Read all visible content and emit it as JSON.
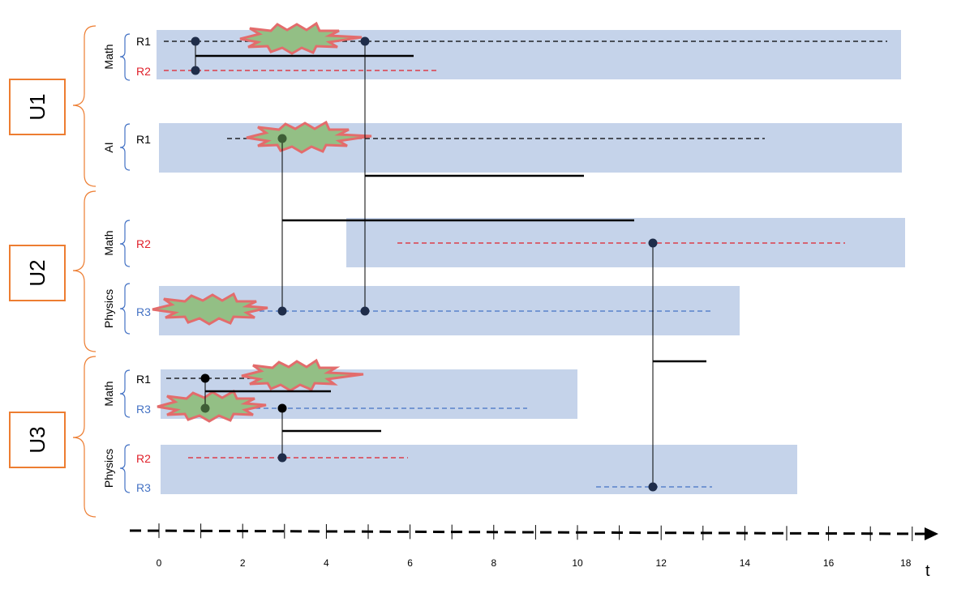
{
  "units": [
    {
      "label": "U1",
      "subjects": [
        {
          "label": "Math",
          "rows": [
            {
              "label": "R1",
              "color": "black"
            },
            {
              "label": "R2",
              "color": "red"
            }
          ]
        },
        {
          "label": "AI",
          "rows": [
            {
              "label": "R1",
              "color": "black"
            }
          ]
        }
      ]
    },
    {
      "label": "U2",
      "subjects": [
        {
          "label": "Math",
          "rows": [
            {
              "label": "R2",
              "color": "red"
            }
          ]
        },
        {
          "label": "Physics",
          "rows": [
            {
              "label": "R3",
              "color": "blue"
            }
          ]
        }
      ]
    },
    {
      "label": "U3",
      "subjects": [
        {
          "label": "Math",
          "rows": [
            {
              "label": "R1",
              "color": "black"
            },
            {
              "label": "R3",
              "color": "blue"
            }
          ]
        },
        {
          "label": "Physics",
          "rows": [
            {
              "label": "R2",
              "color": "red"
            },
            {
              "label": "R3",
              "color": "blue"
            }
          ]
        }
      ]
    }
  ],
  "axis": {
    "ticks": [
      "0",
      "2",
      "4",
      "6",
      "8",
      "10",
      "12",
      "14",
      "16",
      "18"
    ],
    "label": "t"
  },
  "colors": {
    "unit_box": "#ED7D31",
    "brace": "#ED7D31",
    "subject_brace": "#4472C4",
    "band": "#C5D3EA",
    "dot": "#1F2D4A",
    "black_row": "#000000",
    "red_row": "#E0202A",
    "blue_row": "#4472C4",
    "burst_fill": "#93BF85",
    "burst_stroke": "#E36C6C"
  }
}
